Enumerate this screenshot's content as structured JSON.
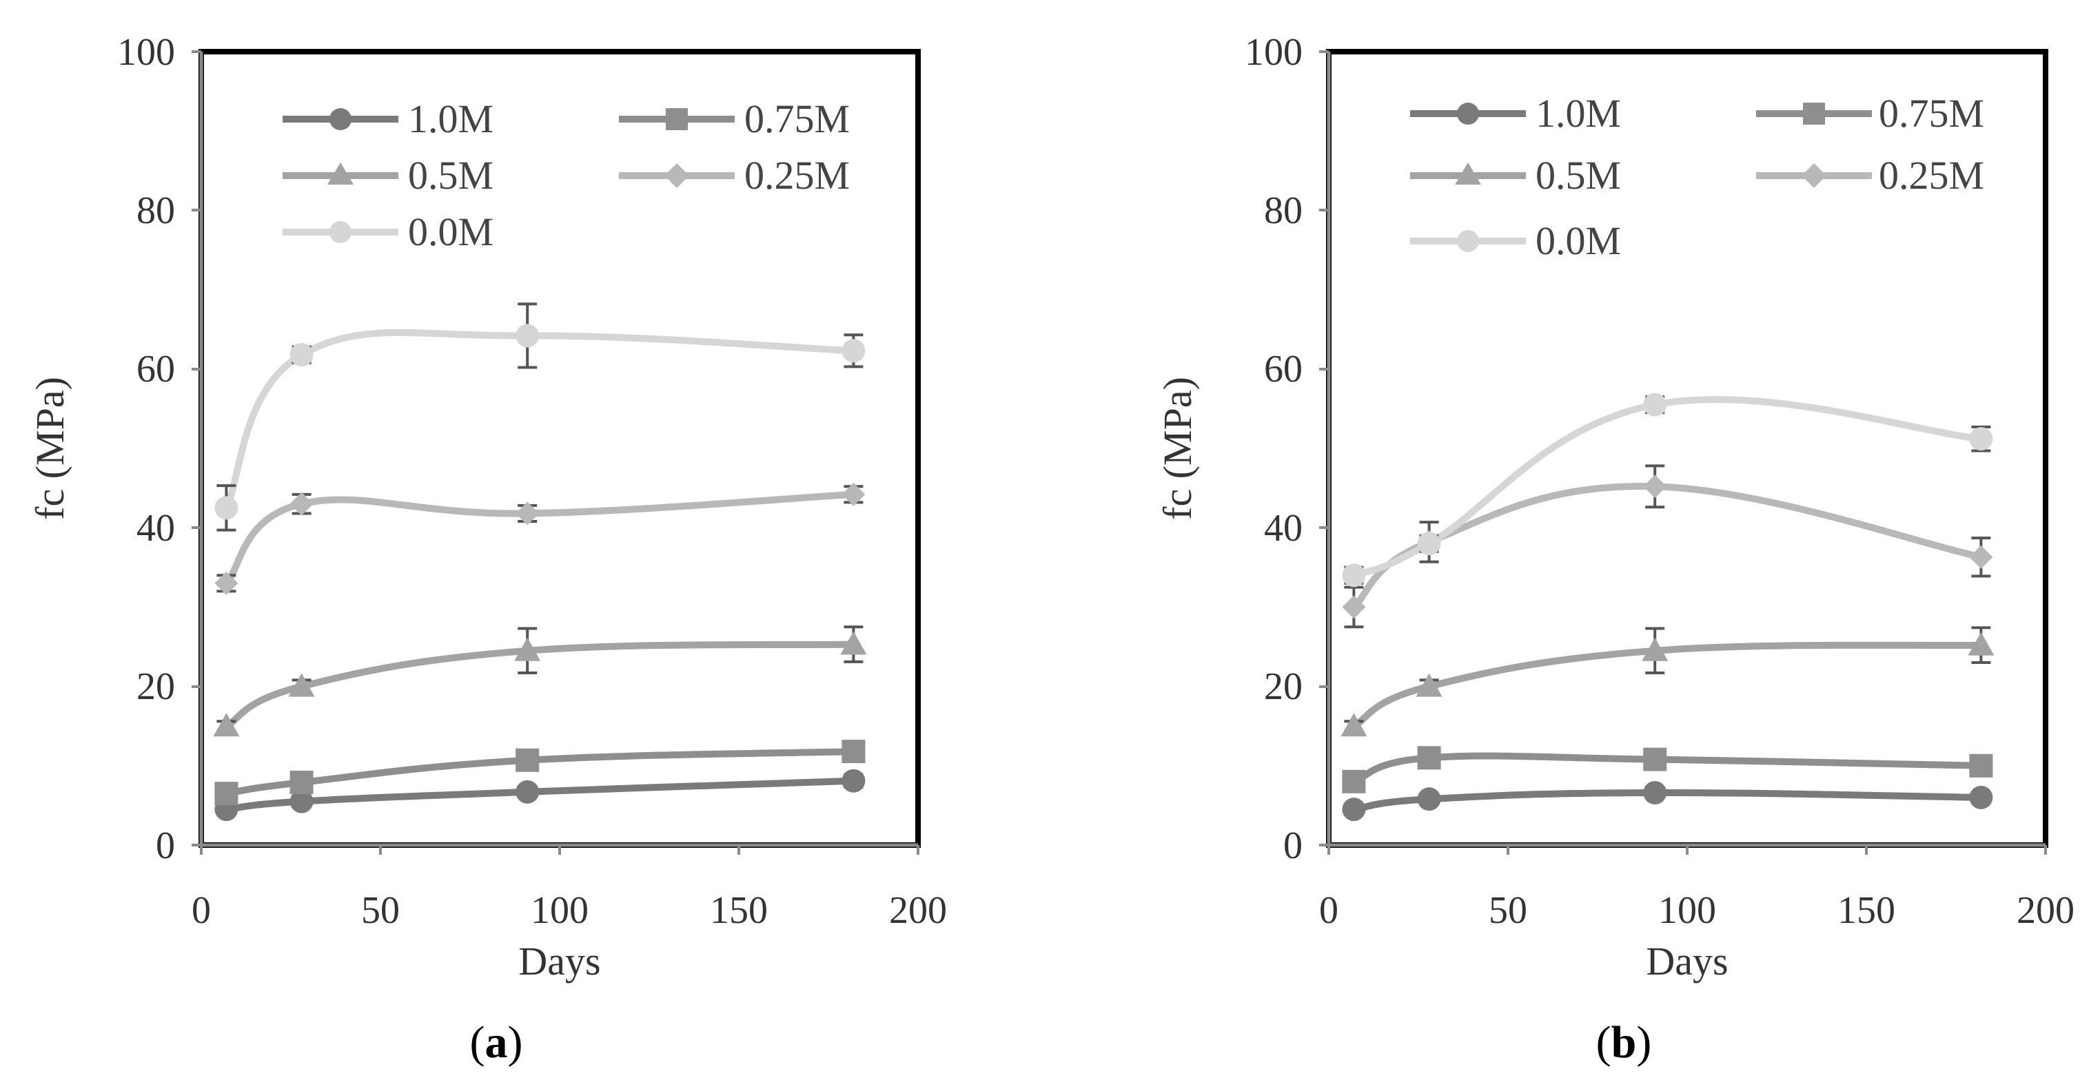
{
  "figure": {
    "chart_data": [
      {
        "type": "line",
        "panel_label": {
          "open": "(",
          "letter": "a",
          "close": ")"
        },
        "xlabel": "Days",
        "ylabel": "fc (MPa)",
        "xlim": [
          0,
          200
        ],
        "ylim": [
          0,
          100
        ],
        "xticks": [
          "0",
          "50",
          "100",
          "150",
          "200"
        ],
        "yticks": [
          "0",
          "20",
          "40",
          "60",
          "80",
          "100"
        ],
        "legend_position": "top-left",
        "series": [
          {
            "name": "1.0M",
            "marker": "circle",
            "color": "#7a7a7a",
            "x": [
              7,
              28,
              91,
              182
            ],
            "values": [
              4.5,
              5.5,
              6.7,
              8.1
            ],
            "err": [
              0.5,
              0.5,
              0.6,
              0.8
            ]
          },
          {
            "name": "0.75M",
            "marker": "square",
            "color": "#8e8e8e",
            "x": [
              7,
              28,
              91,
              182
            ],
            "values": [
              6.5,
              7.9,
              10.7,
              11.8
            ],
            "err": [
              0.5,
              0.5,
              0.8,
              0.8
            ]
          },
          {
            "name": "0.5M",
            "marker": "triangle",
            "color": "#a3a3a3",
            "x": [
              7,
              28,
              91,
              182
            ],
            "values": [
              15,
              20,
              24.5,
              25.3
            ],
            "err": [
              0.6,
              0.8,
              2.8,
              2.2
            ]
          },
          {
            "name": "0.25M",
            "marker": "diamond",
            "color": "#b8b8b8",
            "x": [
              7,
              28,
              91,
              182
            ],
            "values": [
              33,
              43,
              41.8,
              44.2
            ],
            "err": [
              1.0,
              1.2,
              1.0,
              1.0
            ]
          },
          {
            "name": "0.0M",
            "marker": "circle",
            "color": "#d6d6d6",
            "x": [
              7,
              28,
              91,
              182
            ],
            "values": [
              42.5,
              61.8,
              64.2,
              62.3
            ],
            "err": [
              2.8,
              1.0,
              4.0,
              2.0
            ]
          }
        ]
      },
      {
        "type": "line",
        "panel_label": {
          "open": "(",
          "letter": "b",
          "close": ")"
        },
        "xlabel": "Days",
        "ylabel": "fc (MPa)",
        "xlim": [
          0,
          200
        ],
        "ylim": [
          0,
          100
        ],
        "xticks": [
          "0",
          "50",
          "100",
          "150",
          "200"
        ],
        "yticks": [
          "0",
          "20",
          "40",
          "60",
          "80",
          "100"
        ],
        "legend_position": "top-left",
        "series": [
          {
            "name": "1.0M",
            "marker": "circle",
            "color": "#7a7a7a",
            "x": [
              7,
              28,
              91,
              182
            ],
            "values": [
              4.5,
              5.8,
              6.6,
              6.0
            ],
            "err": [
              0.5,
              0.5,
              0.5,
              0.5
            ]
          },
          {
            "name": "0.75M",
            "marker": "square",
            "color": "#8e8e8e",
            "x": [
              7,
              28,
              91,
              182
            ],
            "values": [
              8.0,
              11.0,
              10.8,
              10.0
            ],
            "err": [
              0.6,
              0.8,
              0.6,
              0.6
            ]
          },
          {
            "name": "0.5M",
            "marker": "triangle",
            "color": "#a3a3a3",
            "x": [
              7,
              28,
              91,
              182
            ],
            "values": [
              15,
              20,
              24.5,
              25.2
            ],
            "err": [
              0.6,
              0.8,
              2.8,
              2.2
            ]
          },
          {
            "name": "0.25M",
            "marker": "diamond",
            "color": "#b8b8b8",
            "x": [
              7,
              28,
              91,
              182
            ],
            "values": [
              30,
              38.2,
              45.2,
              36.3
            ],
            "err": [
              2.5,
              2.5,
              2.6,
              2.4
            ]
          },
          {
            "name": "0.0M",
            "marker": "circle",
            "color": "#d6d6d6",
            "x": [
              7,
              28,
              91,
              182
            ],
            "values": [
              34,
              38,
              55.5,
              51.2
            ],
            "err": [
              1.0,
              1.0,
              1.0,
              1.5
            ]
          }
        ]
      }
    ]
  }
}
